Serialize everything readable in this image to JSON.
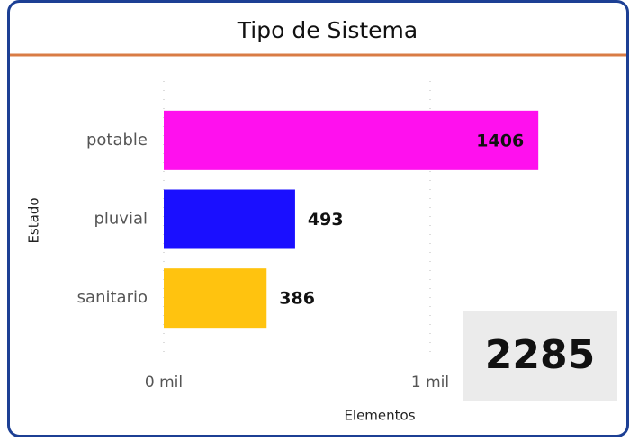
{
  "chart_data": {
    "type": "bar",
    "orientation": "horizontal",
    "title": "Tipo de Sistema",
    "y_label": "Estado",
    "x_label": "Elementos",
    "categories": [
      "potable",
      "pluvial",
      "sanitario"
    ],
    "series": [
      {
        "name": "Elementos",
        "colors": [
          "#ff10ee",
          "#1a0fff",
          "#ffc30f"
        ],
        "values": [
          1406,
          493,
          386
        ]
      }
    ],
    "xlim": [
      0,
      1600
    ],
    "xticks": [
      {
        "value": 0,
        "label": "0 mil"
      },
      {
        "value": 1000,
        "label": "1 mil"
      }
    ],
    "grid": true,
    "total": 2285
  }
}
